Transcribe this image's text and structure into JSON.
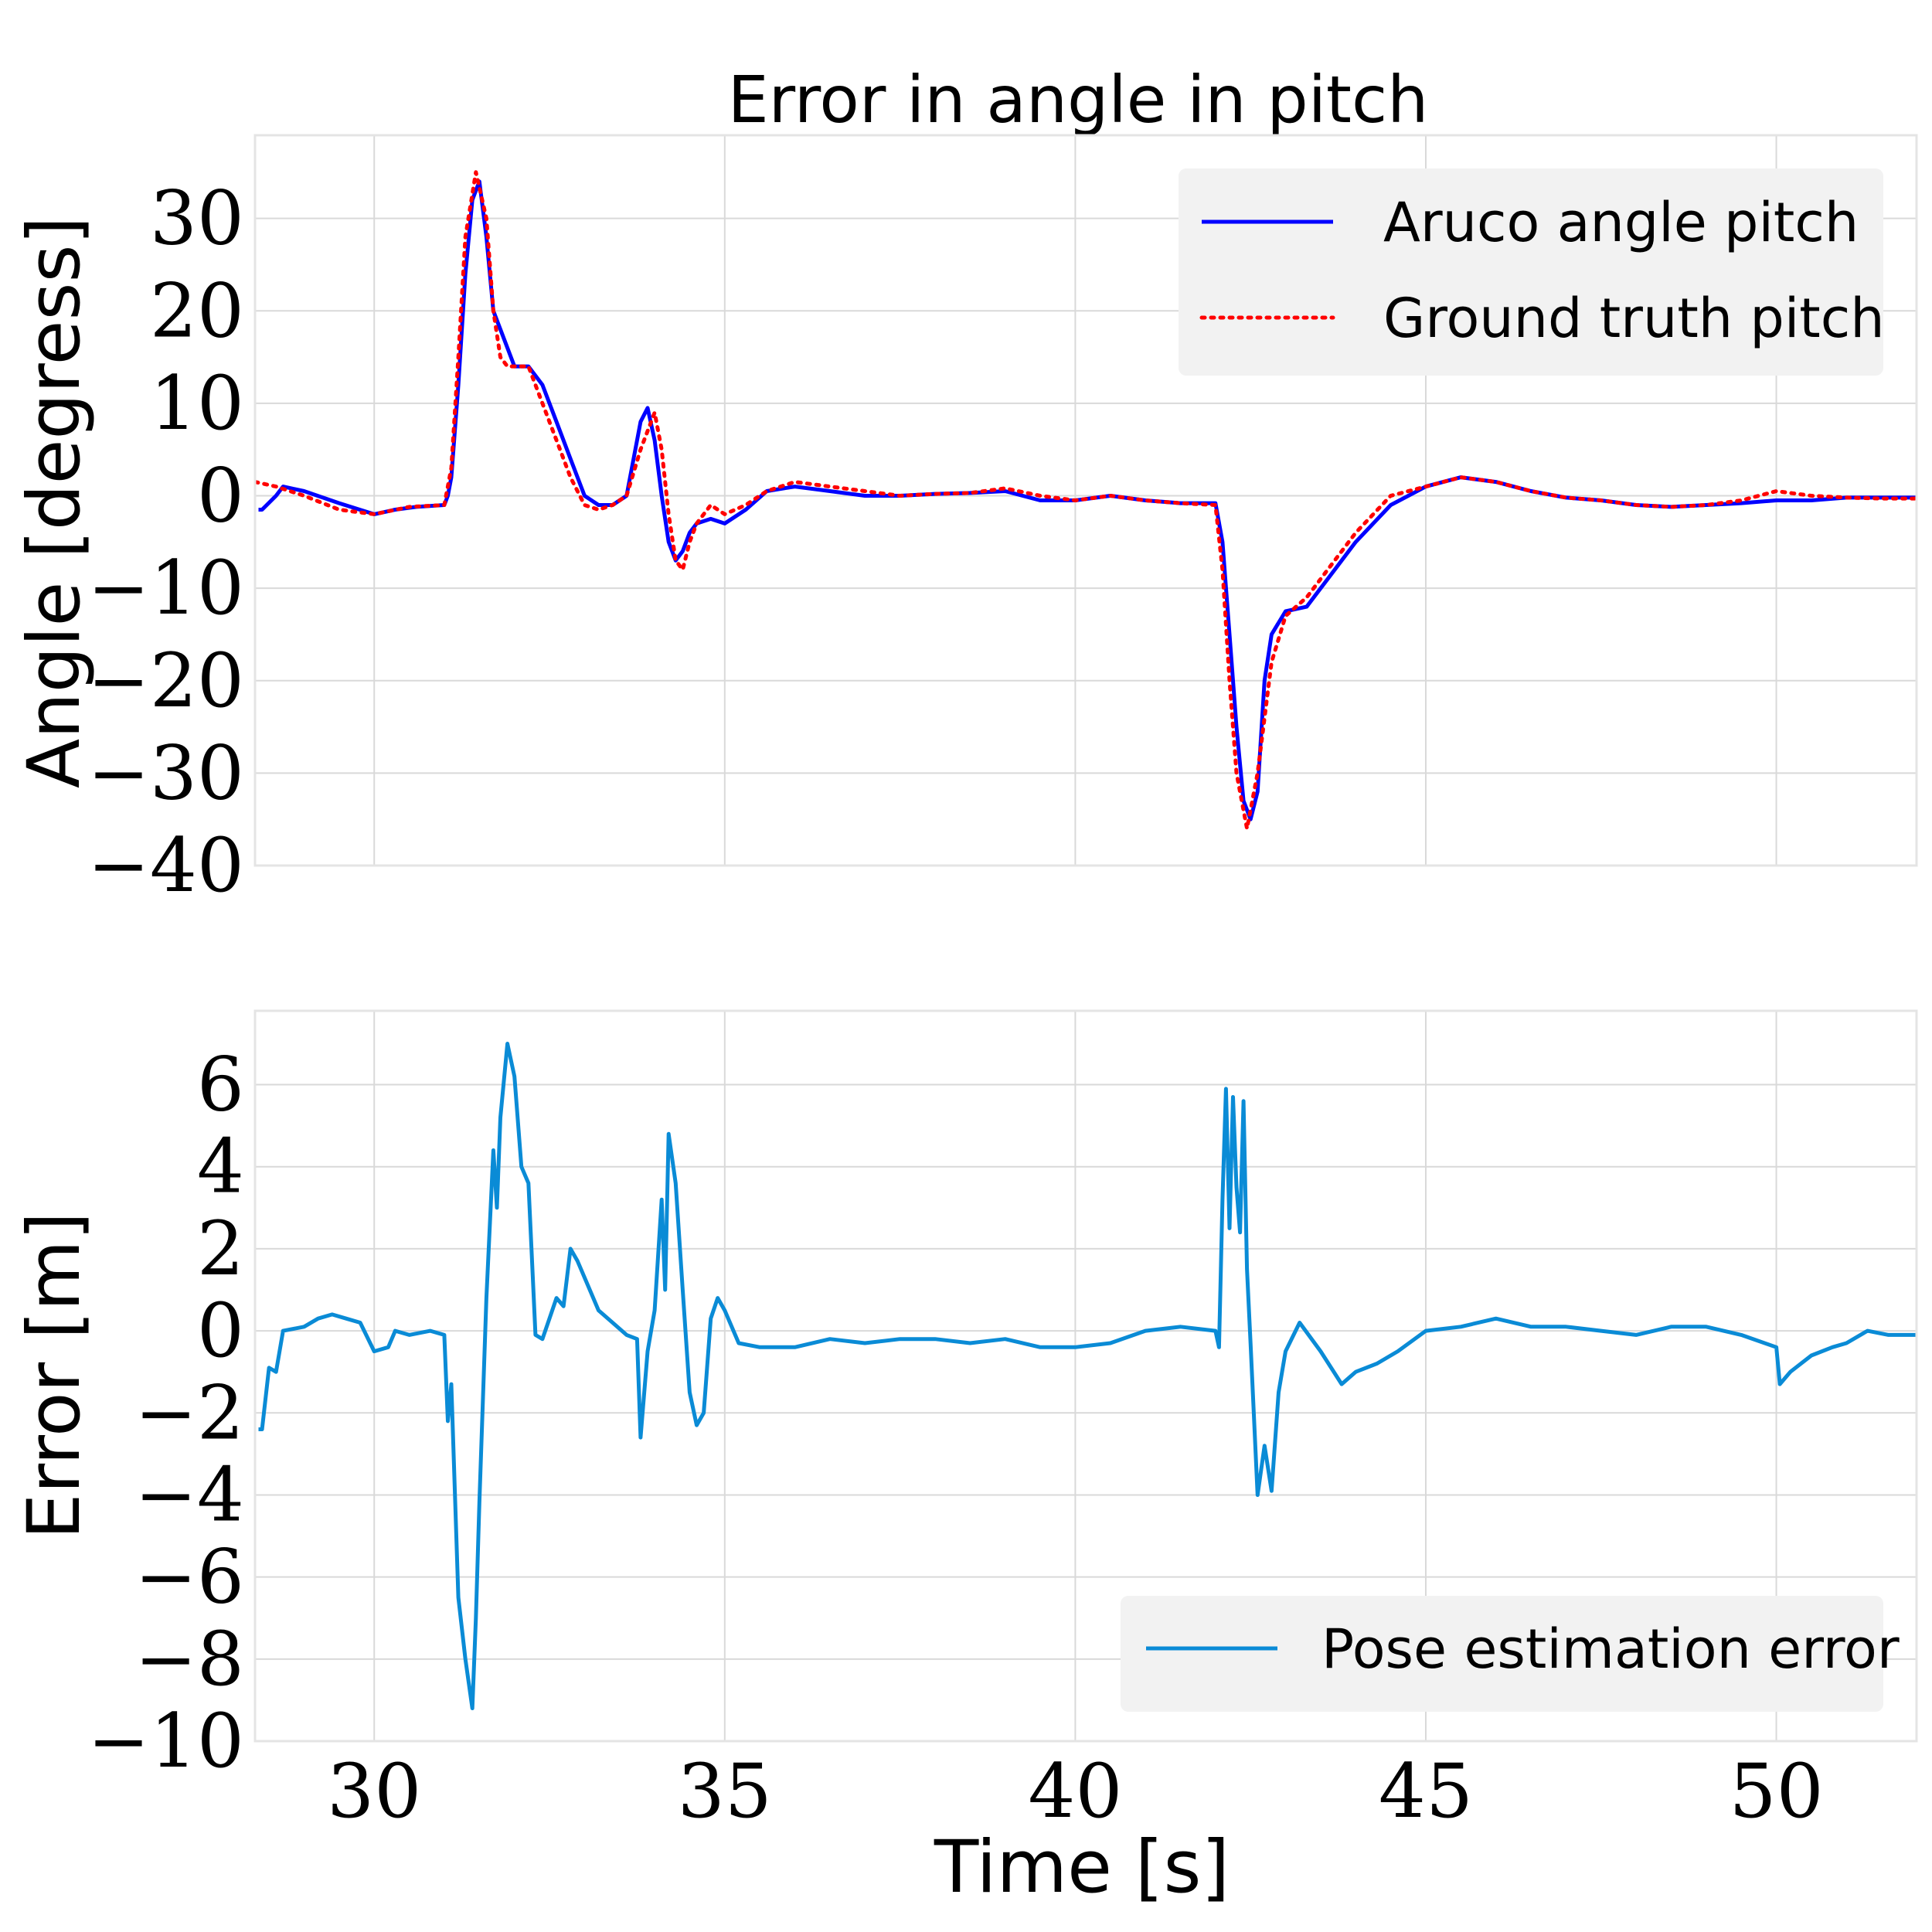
{
  "chart_data": [
    {
      "type": "line",
      "title": "Error in angle in pitch",
      "xlabel": "",
      "ylabel": "Angle [degress]",
      "xlim": [
        28.3,
        52.0
      ],
      "ylim": [
        -40,
        39
      ],
      "xticks": [
        30,
        35,
        40,
        45,
        50
      ],
      "yticks": [
        -40,
        -30,
        -20,
        -10,
        0,
        10,
        20,
        30
      ],
      "ytick_labels": [
        "−40",
        "−30",
        "−20",
        "−10",
        "0",
        "10",
        "20",
        "30"
      ],
      "grid": true,
      "legend": "top-right",
      "series": [
        {
          "name": "Aruco angle pitch",
          "color": "#0000ff",
          "style": "solid",
          "x": [
            28.35,
            28.4,
            28.6,
            28.7,
            29.0,
            29.5,
            30.0,
            30.3,
            30.6,
            31.0,
            31.05,
            31.1,
            31.2,
            31.3,
            31.4,
            31.5,
            31.6,
            31.7,
            31.8,
            31.9,
            32.0,
            32.1,
            32.2,
            32.4,
            32.6,
            32.8,
            33.0,
            33.2,
            33.4,
            33.6,
            33.8,
            33.9,
            34.0,
            34.1,
            34.2,
            34.3,
            34.4,
            34.5,
            34.6,
            34.8,
            35.0,
            35.3,
            35.6,
            36.0,
            36.5,
            37.0,
            37.5,
            38.0,
            38.5,
            39.0,
            39.5,
            40.0,
            40.5,
            41.0,
            41.5,
            42.0,
            42.1,
            42.2,
            42.3,
            42.4,
            42.5,
            42.6,
            42.7,
            42.8,
            43.0,
            43.3,
            43.6,
            44.0,
            44.5,
            45.0,
            45.5,
            46.0,
            46.5,
            47.0,
            47.5,
            48.0,
            48.5,
            49.0,
            49.5,
            50.0,
            50.5,
            51.0,
            51.5,
            52.0
          ],
          "y": [
            -1.5,
            -1.5,
            0,
            1.0,
            0.5,
            -0.8,
            -2,
            -1.5,
            -1.2,
            -1,
            0,
            2,
            12,
            24,
            32,
            34,
            28,
            20,
            18,
            16,
            14,
            14,
            14,
            12,
            8,
            4,
            0,
            -1,
            -1,
            0,
            8,
            9.5,
            6,
            0,
            -5,
            -7,
            -6,
            -4,
            -3,
            -2.5,
            -3,
            -1.5,
            0.5,
            1,
            0.5,
            0,
            0,
            0.2,
            0.3,
            0.5,
            -0.5,
            -0.5,
            0,
            -0.5,
            -0.8,
            -0.8,
            -5,
            -15,
            -25,
            -33,
            -35,
            -32,
            -20,
            -15,
            -12.5,
            -12,
            -9,
            -5,
            -1,
            1,
            2,
            1.5,
            0.5,
            -0.2,
            -0.5,
            -1,
            -1.2,
            -1,
            -0.8,
            -0.5,
            -0.5,
            -0.2,
            -0.2,
            -0.2
          ]
        },
        {
          "name": "Ground truth pitch",
          "color": "#ff0000",
          "style": "dotted",
          "x": [
            28.3,
            28.6,
            29.0,
            29.5,
            30.0,
            30.5,
            31.0,
            31.1,
            31.2,
            31.3,
            31.45,
            31.6,
            31.7,
            31.8,
            31.9,
            32.0,
            32.2,
            32.4,
            32.6,
            32.8,
            33.0,
            33.2,
            33.4,
            33.6,
            33.8,
            34.0,
            34.1,
            34.2,
            34.3,
            34.4,
            34.5,
            34.6,
            34.8,
            35.0,
            35.3,
            35.6,
            36.0,
            36.5,
            37.0,
            37.5,
            38.0,
            38.5,
            39.0,
            39.5,
            40.0,
            40.5,
            41.0,
            41.5,
            42.0,
            42.1,
            42.2,
            42.3,
            42.45,
            42.6,
            42.8,
            43.0,
            43.3,
            43.6,
            44.0,
            44.5,
            45.0,
            45.5,
            46.0,
            46.5,
            47.0,
            47.5,
            48.0,
            48.5,
            49.0,
            49.5,
            50.0,
            50.5,
            51.0,
            51.5,
            52.0
          ],
          "y": [
            1.5,
            1.0,
            0,
            -1.5,
            -2,
            -1.2,
            -1,
            3,
            15,
            28,
            35,
            30,
            20,
            15,
            14,
            14,
            14,
            10,
            6,
            2,
            -1,
            -1.5,
            -1,
            0,
            5,
            9,
            5,
            -2,
            -7,
            -8,
            -5,
            -3,
            -1,
            -2,
            -1,
            0.5,
            1.5,
            1,
            0.5,
            0,
            0.2,
            0.3,
            0.8,
            0,
            -0.5,
            0,
            -0.5,
            -0.8,
            -1,
            -8,
            -20,
            -30,
            -36,
            -30,
            -18,
            -13,
            -11,
            -8,
            -4,
            0,
            1,
            2,
            1.5,
            0.5,
            -0.2,
            -0.5,
            -1,
            -1.2,
            -1,
            -0.5,
            0.5,
            0,
            -0.2,
            -0.3,
            -0.3
          ]
        }
      ]
    },
    {
      "type": "line",
      "title": "",
      "xlabel": "Time [s]",
      "ylabel": "Error [m]",
      "xlim": [
        28.3,
        52.0
      ],
      "ylim": [
        -10,
        7.8
      ],
      "xticks": [
        30,
        35,
        40,
        45,
        50
      ],
      "xtick_labels": [
        "30",
        "35",
        "40",
        "45",
        "50"
      ],
      "yticks": [
        -10,
        -8,
        -6,
        -4,
        -2,
        0,
        2,
        4,
        6
      ],
      "ytick_labels": [
        "−10",
        "−8",
        "−6",
        "−4",
        "−2",
        "0",
        "2",
        "4",
        "6"
      ],
      "grid": true,
      "legend": "bottom-right",
      "series": [
        {
          "name": "Pose estimation error",
          "color": "#0a8bd6",
          "style": "solid",
          "x": [
            28.35,
            28.4,
            28.5,
            28.6,
            28.7,
            29.0,
            29.2,
            29.4,
            29.6,
            29.8,
            30.0,
            30.2,
            30.3,
            30.5,
            30.8,
            31.0,
            31.05,
            31.1,
            31.2,
            31.3,
            31.4,
            31.45,
            31.5,
            31.6,
            31.7,
            31.75,
            31.8,
            31.9,
            32.0,
            32.1,
            32.2,
            32.3,
            32.4,
            32.5,
            32.6,
            32.7,
            32.8,
            32.9,
            33.0,
            33.2,
            33.4,
            33.6,
            33.75,
            33.8,
            33.9,
            34.0,
            34.1,
            34.15,
            34.2,
            34.3,
            34.4,
            34.5,
            34.6,
            34.7,
            34.8,
            34.9,
            35.0,
            35.2,
            35.5,
            36.0,
            36.5,
            37.0,
            37.5,
            38.0,
            38.5,
            39.0,
            39.5,
            40.0,
            40.5,
            41.0,
            41.5,
            42.0,
            42.05,
            42.1,
            42.15,
            42.2,
            42.25,
            42.3,
            42.35,
            42.4,
            42.45,
            42.5,
            42.6,
            42.7,
            42.8,
            42.9,
            43.0,
            43.2,
            43.5,
            43.8,
            44.0,
            44.3,
            44.6,
            45.0,
            45.5,
            46.0,
            46.5,
            47.0,
            47.5,
            48.0,
            48.5,
            49.0,
            49.5,
            50.0,
            50.05,
            50.2,
            50.5,
            50.8,
            51.0,
            51.3,
            51.6,
            52.0
          ],
          "y": [
            -2.4,
            -2.4,
            -0.9,
            -1.0,
            0,
            0.1,
            0.3,
            0.4,
            0.3,
            0.2,
            -0.5,
            -0.4,
            0,
            -0.1,
            0,
            -0.1,
            -2.2,
            -1.3,
            -6.5,
            -8,
            -9.2,
            -7,
            -4.2,
            0.8,
            4.4,
            3.0,
            5.2,
            7.0,
            6.2,
            4.0,
            3.6,
            -0.1,
            -0.2,
            0.3,
            0.8,
            0.6,
            2.0,
            1.7,
            1.3,
            0.5,
            0.2,
            -0.1,
            -0.2,
            -2.6,
            -0.5,
            0.5,
            3.2,
            1.0,
            4.8,
            3.6,
            1.0,
            -1.5,
            -2.3,
            -2.0,
            0.3,
            0.8,
            0.5,
            -0.3,
            -0.4,
            -0.4,
            -0.2,
            -0.3,
            -0.2,
            -0.2,
            -0.3,
            -0.2,
            -0.4,
            -0.4,
            -0.3,
            0,
            0.1,
            0,
            -0.4,
            3.2,
            5.9,
            2.5,
            5.7,
            3.5,
            2.4,
            5.6,
            1.5,
            -0.3,
            -4.0,
            -2.8,
            -3.9,
            -1.5,
            -0.5,
            0.2,
            -0.5,
            -1.3,
            -1.0,
            -0.8,
            -0.5,
            0,
            0.1,
            0.3,
            0.1,
            0.1,
            0,
            -0.1,
            0.1,
            0.1,
            -0.1,
            -0.4,
            -1.3,
            -1.0,
            -0.6,
            -0.4,
            -0.3,
            0,
            -0.1,
            -0.1
          ]
        }
      ]
    }
  ]
}
